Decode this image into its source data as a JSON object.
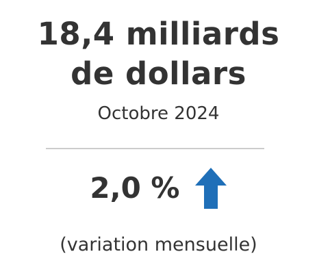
{
  "headline": {
    "line1": "18,4 milliards",
    "line2": "de dollars"
  },
  "period": "Octobre 2024",
  "change": {
    "value": "2,0 %",
    "direction_icon": "arrow-up-icon",
    "arrow_color": "#1f6fb8"
  },
  "note": "(variation mensuelle)"
}
